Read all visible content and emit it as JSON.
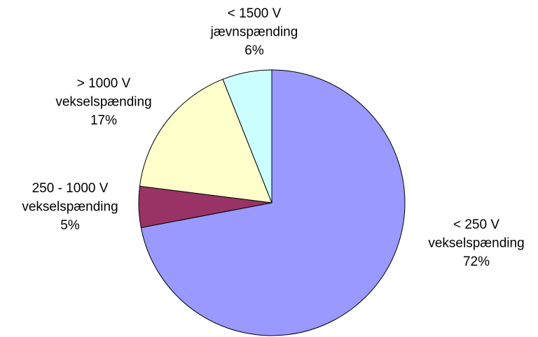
{
  "chart_data": {
    "type": "pie",
    "categories": [
      [
        "< 250 V",
        "vekselspænding"
      ],
      [
        "250 - 1000 V",
        "vekselspænding"
      ],
      [
        "> 1000 V",
        "vekselspænding"
      ],
      [
        "< 1500 V",
        "jævnspænding"
      ]
    ],
    "values": [
      72,
      5,
      17,
      6
    ],
    "value_labels": [
      "72%",
      "5%",
      "17%",
      "6%"
    ],
    "colors": [
      "#9999ff",
      "#993366",
      "#ffffcc",
      "#ccffff"
    ]
  }
}
